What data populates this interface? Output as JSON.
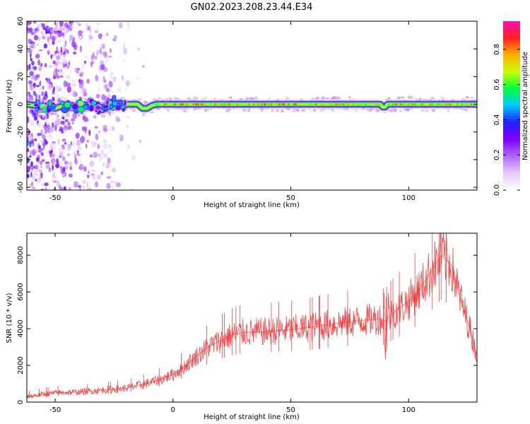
{
  "figure_title": "GN02.2023.208.23.44.E34",
  "chart_data": [
    {
      "type": "heatmap",
      "xlabel": "Height of straight line (km)",
      "ylabel": "Frequency (Hz)",
      "xlim": [
        -62,
        129
      ],
      "ylim": [
        -62,
        60
      ],
      "xticks": [
        -50,
        0,
        50,
        100
      ],
      "yticks": [
        -60,
        -40,
        -20,
        0,
        20,
        40,
        60
      ],
      "colorbar": {
        "label": "Normalized spectral amplitude",
        "range": [
          0,
          0.96
        ],
        "ticks": [
          0.0,
          0.2,
          0.4,
          0.6,
          0.8
        ],
        "colormap": [
          "#ffffff",
          "#e6ccff",
          "#b266ff",
          "#8000ff",
          "#2020ff",
          "#00c8ff",
          "#00ff40",
          "#c8ff00",
          "#ffb000",
          "#ff2020",
          "#ff10b0"
        ]
      },
      "ridge": {
        "x": [
          -62,
          -50,
          -45,
          -40,
          -35,
          -30,
          -25,
          -21,
          -17,
          -15,
          -13,
          -11,
          -9,
          -7,
          0,
          25,
          50,
          88,
          89,
          90,
          91,
          92,
          129
        ],
        "y": [
          0,
          -3,
          0,
          -2,
          0,
          -4,
          1,
          0,
          0,
          0,
          -3,
          -3,
          -1,
          0,
          0,
          0,
          0,
          0,
          -2,
          -2,
          0,
          0,
          0
        ],
        "amplitude": [
          0.45,
          0.55,
          0.6,
          0.6,
          0.6,
          0.55,
          0.45,
          0.35,
          0.35,
          0.35,
          0.5,
          0.5,
          0.5,
          0.8,
          0.9,
          0.85,
          0.9,
          0.8,
          0.6,
          0.6,
          0.8,
          0.85,
          0.85
        ]
      }
    },
    {
      "type": "line",
      "xlabel": "Height of straight line (km)",
      "ylabel": "SNR (10 * v/v)",
      "xlim": [
        -62,
        129
      ],
      "ylim": [
        0,
        9200
      ],
      "xticks": [
        -50,
        0,
        50,
        100
      ],
      "yticks": [
        0,
        2000,
        4000,
        6000,
        8000
      ],
      "color": "#ee3333",
      "series": [
        {
          "x": [
            -62,
            -50,
            -40,
            -30,
            -20,
            -15,
            -10,
            -5,
            0,
            5,
            10,
            15,
            20,
            25,
            30,
            35,
            40,
            50,
            60,
            70,
            80,
            88,
            90,
            92,
            95,
            100,
            105,
            110,
            114,
            118,
            122,
            126,
            129
          ],
          "y": [
            300,
            500,
            550,
            650,
            750,
            900,
            1050,
            1250,
            1500,
            1950,
            2500,
            3000,
            3350,
            3650,
            3800,
            3800,
            3850,
            3950,
            4100,
            4300,
            4450,
            4550,
            4400,
            4700,
            5000,
            5500,
            6200,
            7200,
            8000,
            7500,
            5600,
            4000,
            2500
          ]
        }
      ]
    }
  ]
}
